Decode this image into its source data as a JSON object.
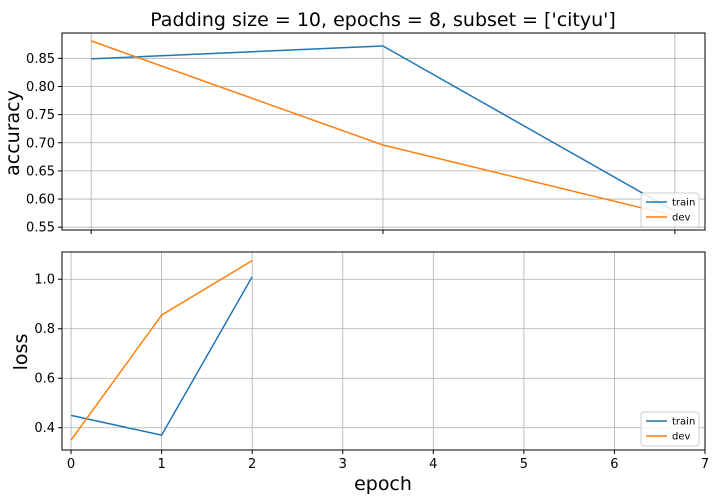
{
  "chart_data": [
    {
      "type": "line",
      "title": "Padding size = 10, epochs = 8, subset = ['cityu']",
      "xlabel": "",
      "ylabel": "accuracy",
      "xlim": [
        -0.1,
        7.0
      ],
      "ylim": [
        0.545,
        0.895
      ],
      "xticks": [
        0.222,
        3.444,
        6.667
      ],
      "yticks": [
        0.55,
        0.6,
        0.65,
        0.7,
        0.75,
        0.8,
        0.85
      ],
      "ytick_labels": [
        "0.55",
        "0.60",
        "0.65",
        "0.70",
        "0.75",
        "0.80",
        "0.85"
      ],
      "grid": true,
      "legend": "lower-right",
      "series": [
        {
          "name": "train",
          "color": "#1f77b4",
          "x": [
            0.222,
            3.444,
            6.667
          ],
          "y": [
            0.849,
            0.872,
            0.578
          ]
        },
        {
          "name": "dev",
          "color": "#ff7f0e",
          "x": [
            0.222,
            3.444,
            6.667
          ],
          "y": [
            0.881,
            0.696,
            0.57
          ]
        }
      ]
    },
    {
      "type": "line",
      "title": "",
      "xlabel": "epoch",
      "ylabel": "loss",
      "xlim": [
        -0.1,
        7.0
      ],
      "ylim": [
        0.31,
        1.11
      ],
      "xticks": [
        0,
        1,
        2,
        3,
        4,
        5,
        6,
        7
      ],
      "xtick_labels": [
        "0",
        "1",
        "2",
        "3",
        "4",
        "5",
        "6",
        "7"
      ],
      "yticks": [
        0.4,
        0.6,
        0.8,
        1.0
      ],
      "ytick_labels": [
        "0.4",
        "0.6",
        "0.8",
        "1.0"
      ],
      "grid": true,
      "legend": "lower-right",
      "series": [
        {
          "name": "train",
          "color": "#1f77b4",
          "x": [
            0,
            1,
            2
          ],
          "y": [
            0.45,
            0.37,
            1.01
          ]
        },
        {
          "name": "dev",
          "color": "#ff7f0e",
          "x": [
            0,
            1,
            2
          ],
          "y": [
            0.35,
            0.855,
            1.075
          ]
        }
      ]
    }
  ]
}
